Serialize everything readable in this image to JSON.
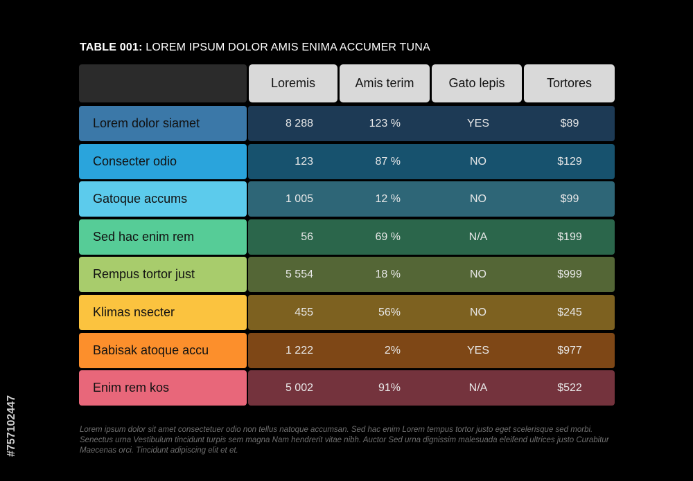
{
  "title": {
    "prefix": "TABLE 001:",
    "text": "LOREM IPSUM DOLOR AMIS ENIMA ACCUMER TUNA"
  },
  "columns": [
    "Loremis",
    "Amis terim",
    "Gato lepis",
    "Tortores"
  ],
  "rows": [
    {
      "label": "Lorem dolor siamet",
      "loremis": "8 288",
      "amis": "123 %",
      "gato": "YES",
      "tortores": "$89",
      "label_color": "#3b78a8",
      "band_color": "#1d3a55"
    },
    {
      "label": "Consecter odio",
      "loremis": "123",
      "amis": "87 %",
      "gato": "NO",
      "tortores": "$129",
      "label_color": "#2aa4dc",
      "band_color": "#17526e"
    },
    {
      "label": "Gatoque accums",
      "loremis": "1 005",
      "amis": "12 %",
      "gato": "NO",
      "tortores": "$99",
      "label_color": "#5ccbec",
      "band_color": "#2e6677"
    },
    {
      "label": "Sed hac enim rem",
      "loremis": "56",
      "amis": "69 %",
      "gato": "N/A",
      "tortores": "$199",
      "label_color": "#56cc97",
      "band_color": "#2b664b"
    },
    {
      "label": "Rempus tortor just",
      "loremis": "5 554",
      "amis": "18 %",
      "gato": "NO",
      "tortores": "$999",
      "label_color": "#a8cc6c",
      "band_color": "#546636"
    },
    {
      "label": "Klimas nsecter",
      "loremis": "455",
      "amis": "56%",
      "gato": "NO",
      "tortores": "$245",
      "label_color": "#fbc33f",
      "band_color": "#7d6120"
    },
    {
      "label": "Babisak atoque accu",
      "loremis": "1 222",
      "amis": "2%",
      "gato": "YES",
      "tortores": "$977",
      "label_color": "#fc8f2c",
      "band_color": "#7e4716"
    },
    {
      "label": "Enim rem kos",
      "loremis": "5 002",
      "amis": "91%",
      "gato": "N/A",
      "tortores": "$522",
      "label_color": "#e8677a",
      "band_color": "#74333d"
    }
  ],
  "footnote": "Lorem ipsum dolor sit amet consectetuer odio non tellus natoque accumsan. Sed hac enim Lorem tempus tortor justo eget scelerisque sed morbi. Senectus urna Vestibulum tincidunt turpis sem magna Nam hendrerit vitae nibh. Auctor Sed urna dignissim malesuada eleifend ultrices justo Curabitur Maecenas orci. Tincidunt adipiscing elit et et.",
  "side_id": "#757102447"
}
